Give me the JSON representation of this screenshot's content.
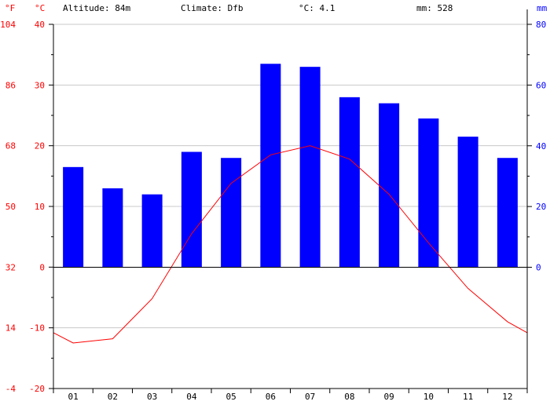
{
  "header": {
    "altitude": "Altitude: 84m",
    "climate": "Climate: Dfb",
    "temp_summary": "°C: 4.1",
    "precip_summary": "mm: 528"
  },
  "units": {
    "fahrenheit": "°F",
    "celsius": "°C",
    "mm": "mm"
  },
  "colors": {
    "temperature": "#ff0000",
    "precipitation": "#0000ff",
    "axis_text_temp": "#ff0000",
    "axis_text_precip": "#0000ff",
    "grid": "#c8c8c8"
  },
  "chart_data": {
    "type": "bar",
    "categories": [
      "01",
      "02",
      "03",
      "04",
      "05",
      "06",
      "07",
      "08",
      "09",
      "10",
      "11",
      "12"
    ],
    "series": [
      {
        "kind": "bar",
        "axis": "right",
        "values": [
          33,
          26,
          24,
          38,
          36,
          67,
          66,
          56,
          54,
          49,
          43,
          36
        ]
      },
      {
        "kind": "line",
        "axis": "left",
        "values": [
          -12.5,
          -11.8,
          -5.2,
          5.5,
          13.8,
          18.5,
          20.0,
          17.8,
          12.0,
          4.0,
          -3.5,
          -9.0
        ],
        "edge_values": [
          -10.8,
          -10.8
        ]
      }
    ],
    "celsius_ticks": [
      40,
      30,
      20,
      10,
      0,
      -10,
      -20
    ],
    "fahrenheit_ticks": [
      104,
      86,
      68,
      50,
      32,
      14,
      -4
    ],
    "mm_ticks": [
      80,
      60,
      40,
      20,
      0
    ],
    "ylim_celsius": [
      -20,
      40
    ],
    "ylim_mm": [
      0,
      80
    ],
    "grid": true
  }
}
